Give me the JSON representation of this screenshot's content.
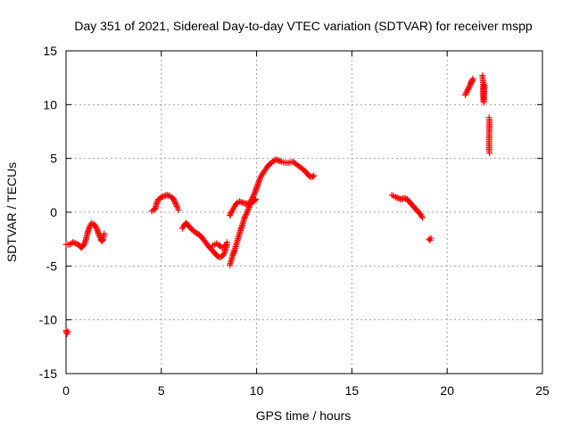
{
  "chart_data": {
    "type": "scatter",
    "title": "Day 351 of 2021, Sidereal Day-to-day VTEC variation (SDTVAR) for receiver mspp",
    "xlabel": "GPS time / hours",
    "ylabel": "SDTVAR / TECUs",
    "xlim": [
      0,
      25
    ],
    "ylim": [
      -15,
      15
    ],
    "xticks": [
      0,
      5,
      10,
      15,
      20,
      25
    ],
    "yticks": [
      -15,
      -10,
      -5,
      0,
      5,
      10,
      15
    ],
    "grid": true,
    "marker": "+",
    "series": [
      {
        "name": "SDTVAR",
        "color": "#ff0000",
        "segments": [
          [
            [
              0.0,
              -11.0
            ],
            [
              0.05,
              -11.3
            ],
            [
              0.1,
              -11.1
            ]
          ],
          [
            [
              0.0,
              -3.0
            ],
            [
              0.2,
              -3.0
            ],
            [
              0.35,
              -2.8
            ],
            [
              0.5,
              -2.9
            ],
            [
              0.65,
              -3.0
            ],
            [
              0.8,
              -3.3
            ],
            [
              0.95,
              -3.0
            ],
            [
              1.05,
              -2.5
            ],
            [
              1.15,
              -1.8
            ],
            [
              1.25,
              -1.3
            ],
            [
              1.35,
              -1.0
            ],
            [
              1.45,
              -1.1
            ],
            [
              1.55,
              -1.3
            ],
            [
              1.65,
              -1.7
            ],
            [
              1.75,
              -2.2
            ],
            [
              1.82,
              -2.5
            ],
            [
              1.88,
              -2.7
            ],
            [
              1.95,
              -2.5
            ],
            [
              2.0,
              -2.0
            ]
          ],
          [
            [
              4.5,
              0.1
            ],
            [
              4.6,
              0.2
            ],
            [
              4.7,
              0.4
            ],
            [
              4.75,
              0.8
            ],
            [
              4.85,
              1.2
            ],
            [
              5.0,
              1.4
            ],
            [
              5.15,
              1.5
            ],
            [
              5.3,
              1.6
            ],
            [
              5.45,
              1.5
            ],
            [
              5.55,
              1.4
            ],
            [
              5.65,
              1.2
            ],
            [
              5.75,
              0.8
            ],
            [
              5.85,
              0.4
            ],
            [
              5.9,
              0.2
            ]
          ],
          [
            [
              6.1,
              -1.5
            ],
            [
              6.2,
              -1.2
            ],
            [
              6.3,
              -1.0
            ],
            [
              6.45,
              -1.3
            ],
            [
              6.6,
              -1.6
            ],
            [
              6.8,
              -1.9
            ],
            [
              7.0,
              -2.1
            ],
            [
              7.2,
              -2.5
            ],
            [
              7.4,
              -3.0
            ],
            [
              7.6,
              -3.4
            ],
            [
              7.8,
              -3.8
            ],
            [
              7.95,
              -4.1
            ],
            [
              8.1,
              -4.2
            ],
            [
              8.25,
              -4.0
            ],
            [
              8.35,
              -3.6
            ],
            [
              8.45,
              -3.0
            ]
          ],
          [
            [
              7.7,
              -3.1
            ],
            [
              7.8,
              -3.0
            ],
            [
              7.9,
              -2.9
            ],
            [
              8.0,
              -3.0
            ],
            [
              8.1,
              -3.2
            ],
            [
              8.2,
              -3.3
            ],
            [
              8.3,
              -3.2
            ],
            [
              8.4,
              -3.0
            ],
            [
              8.45,
              -2.8
            ]
          ],
          [
            [
              8.6,
              -4.9
            ],
            [
              8.65,
              -4.6
            ],
            [
              8.75,
              -4.0
            ],
            [
              8.85,
              -3.5
            ],
            [
              8.95,
              -2.9
            ],
            [
              9.05,
              -2.3
            ],
            [
              9.15,
              -1.7
            ],
            [
              9.25,
              -1.2
            ],
            [
              9.35,
              -0.6
            ],
            [
              9.45,
              -0.2
            ],
            [
              9.55,
              0.2
            ],
            [
              9.65,
              0.7
            ],
            [
              9.75,
              1.2
            ],
            [
              9.85,
              1.6
            ],
            [
              9.95,
              2.0
            ],
            [
              10.05,
              2.5
            ],
            [
              10.15,
              3.0
            ],
            [
              10.25,
              3.4
            ],
            [
              10.4,
              3.8
            ],
            [
              10.55,
              4.2
            ],
            [
              10.7,
              4.5
            ],
            [
              10.85,
              4.7
            ],
            [
              11.0,
              4.9
            ],
            [
              11.15,
              4.8
            ],
            [
              11.3,
              4.7
            ],
            [
              11.5,
              4.6
            ],
            [
              11.7,
              4.6
            ],
            [
              11.9,
              4.7
            ],
            [
              12.05,
              4.5
            ],
            [
              12.2,
              4.3
            ],
            [
              12.35,
              4.1
            ],
            [
              12.5,
              3.9
            ],
            [
              12.65,
              3.6
            ],
            [
              12.8,
              3.3
            ],
            [
              12.95,
              3.3
            ],
            [
              13.0,
              3.4
            ]
          ],
          [
            [
              8.6,
              -0.3
            ],
            [
              8.7,
              0.1
            ],
            [
              8.8,
              0.4
            ],
            [
              8.9,
              0.7
            ],
            [
              9.0,
              0.9
            ],
            [
              9.1,
              1.0
            ],
            [
              9.25,
              0.9
            ],
            [
              9.4,
              0.8
            ],
            [
              9.55,
              0.8
            ],
            [
              9.7,
              0.9
            ],
            [
              9.85,
              1.0
            ],
            [
              9.95,
              1.2
            ]
          ],
          [
            [
              17.1,
              1.6
            ],
            [
              17.2,
              1.5
            ],
            [
              17.3,
              1.4
            ],
            [
              17.45,
              1.3
            ],
            [
              17.6,
              1.2
            ],
            [
              17.75,
              1.3
            ],
            [
              17.9,
              1.2
            ],
            [
              18.0,
              1.0
            ],
            [
              18.15,
              0.7
            ],
            [
              18.3,
              0.4
            ],
            [
              18.45,
              0.1
            ],
            [
              18.6,
              -0.2
            ],
            [
              18.7,
              -0.5
            ]
          ],
          [
            [
              19.05,
              -2.5
            ],
            [
              19.1,
              -2.6
            ],
            [
              19.15,
              -2.4
            ]
          ],
          [
            [
              20.95,
              10.9
            ],
            [
              21.2,
              11.8
            ],
            [
              21.3,
              12.2
            ],
            [
              21.35,
              12.4
            ],
            [
              21.25,
              12.0
            ]
          ],
          [
            [
              21.85,
              12.7
            ],
            [
              21.9,
              11.9
            ],
            [
              21.88,
              11.2
            ],
            [
              21.9,
              10.6
            ],
            [
              21.92,
              10.2
            ],
            [
              21.95,
              11.8
            ]
          ],
          [
            [
              22.2,
              8.8
            ],
            [
              22.22,
              8.6
            ],
            [
              22.2,
              5.7
            ],
            [
              22.22,
              5.5
            ]
          ]
        ]
      }
    ]
  }
}
